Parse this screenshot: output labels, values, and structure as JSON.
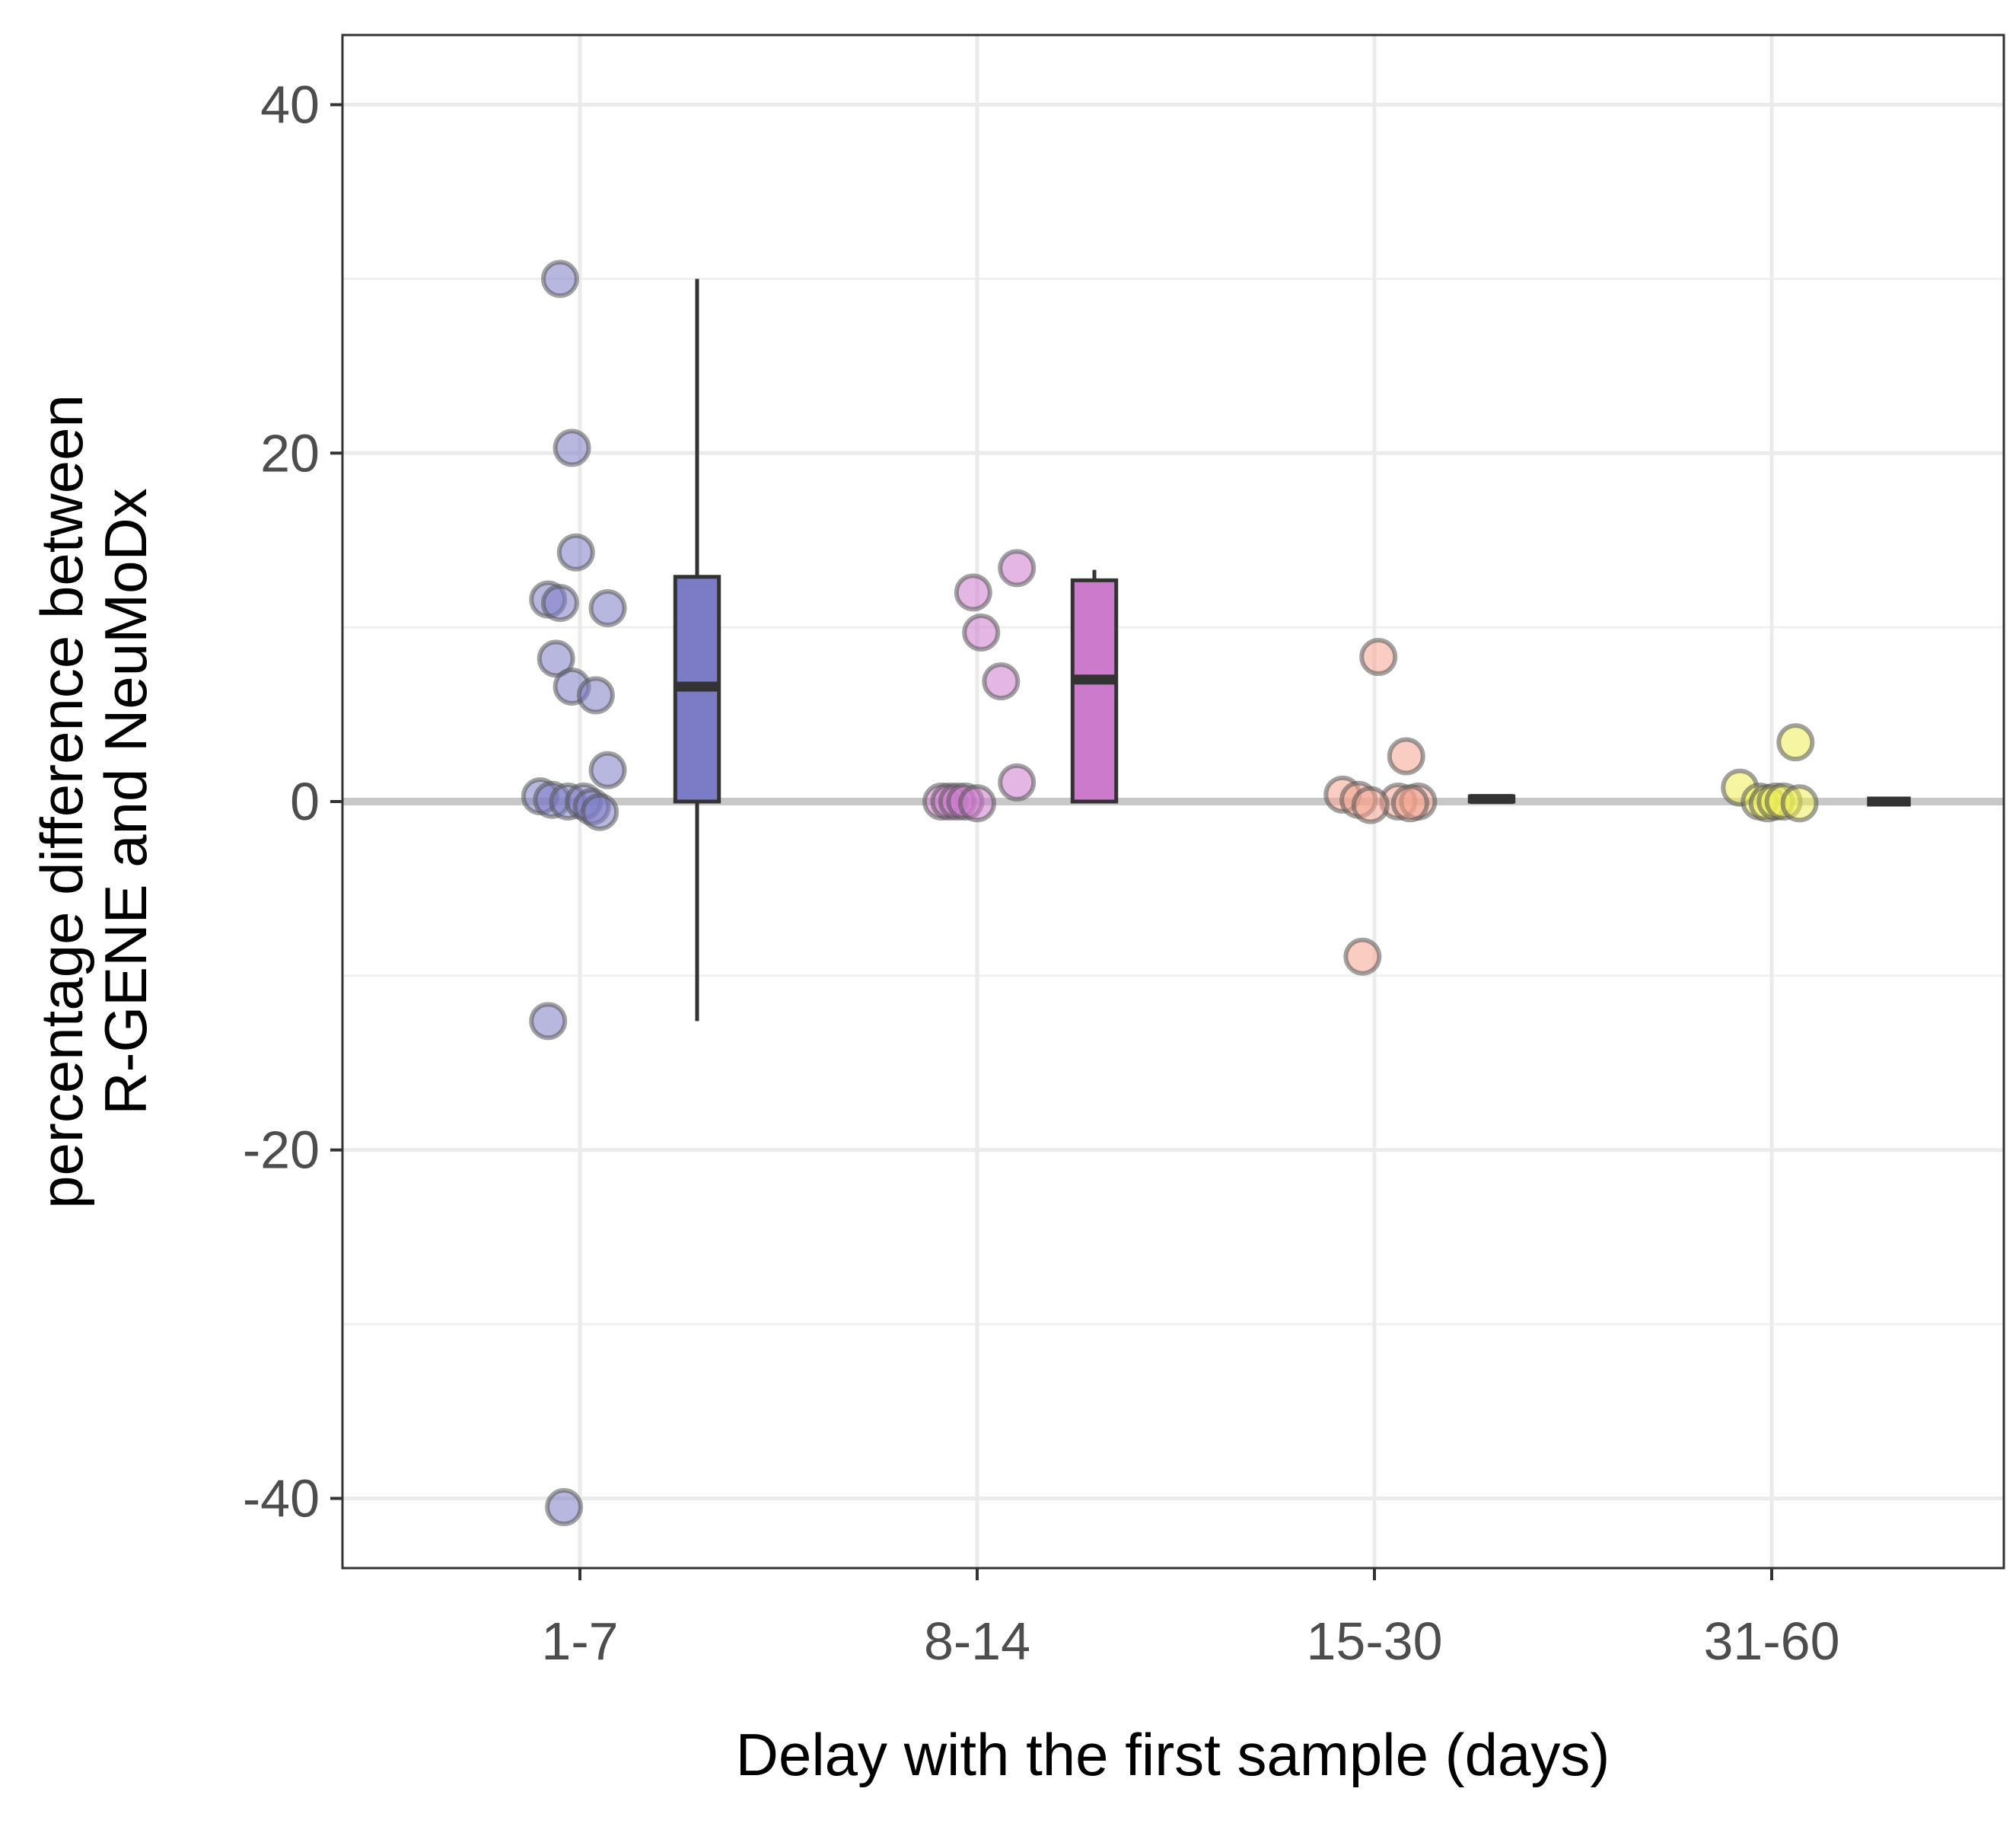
{
  "chart_data": {
    "type": "boxplot-with-jitter",
    "xlabel": "Delay with the first sample (days)",
    "ylabel_lines": [
      "percentage difference between",
      "R-GENE and NeuMoDx"
    ],
    "ylim": [
      -44,
      44
    ],
    "yticks": [
      -40,
      -20,
      0,
      20,
      40
    ],
    "grid": true,
    "reference_line_y": 0,
    "categories": [
      "1-7",
      "8-14",
      "15-30",
      "31-60"
    ],
    "colors": {
      "1-7": "#7b7bc6",
      "8-14": "#cc7acc",
      "15-30": "#f4a490",
      "31-60": "#eeee55"
    },
    "points": {
      "1-7": [
        {
          "offset": -0.05,
          "y": 30
        },
        {
          "offset": -0.02,
          "y": 20.3
        },
        {
          "offset": -0.01,
          "y": 14.3
        },
        {
          "offset": -0.08,
          "y": 11.6
        },
        {
          "offset": -0.05,
          "y": 11.4
        },
        {
          "offset": 0.07,
          "y": 11.1
        },
        {
          "offset": -0.06,
          "y": 8.2
        },
        {
          "offset": -0.02,
          "y": 6.6
        },
        {
          "offset": 0.04,
          "y": 6.1
        },
        {
          "offset": 0.07,
          "y": 1.8
        },
        {
          "offset": -0.1,
          "y": 0.3
        },
        {
          "offset": -0.07,
          "y": 0.1
        },
        {
          "offset": -0.03,
          "y": 0
        },
        {
          "offset": 0.01,
          "y": 0
        },
        {
          "offset": 0.03,
          "y": -0.3
        },
        {
          "offset": 0.05,
          "y": -0.6
        },
        {
          "offset": -0.08,
          "y": -12.6
        },
        {
          "offset": -0.04,
          "y": -40.5
        }
      ],
      "8-14": [
        {
          "offset": 0.1,
          "y": 13.4
        },
        {
          "offset": -0.01,
          "y": 12
        },
        {
          "offset": 0.01,
          "y": 9.7
        },
        {
          "offset": 0.06,
          "y": 6.9
        },
        {
          "offset": 0.1,
          "y": 1.1
        },
        {
          "offset": -0.09,
          "y": 0
        },
        {
          "offset": -0.07,
          "y": 0
        },
        {
          "offset": -0.05,
          "y": 0
        },
        {
          "offset": -0.03,
          "y": 0
        },
        {
          "offset": 0.0,
          "y": -0.1
        }
      ],
      "15-30": [
        {
          "offset": 0.01,
          "y": 8.3
        },
        {
          "offset": 0.08,
          "y": 2.6
        },
        {
          "offset": -0.08,
          "y": 0.4
        },
        {
          "offset": -0.04,
          "y": 0.1
        },
        {
          "offset": 0.06,
          "y": 0
        },
        {
          "offset": 0.11,
          "y": 0
        },
        {
          "offset": 0.09,
          "y": -0.1
        },
        {
          "offset": -0.01,
          "y": -0.2
        },
        {
          "offset": -0.03,
          "y": -8.9
        }
      ],
      "31-60": [
        {
          "offset": 0.06,
          "y": 3.4
        },
        {
          "offset": -0.08,
          "y": 0.8
        },
        {
          "offset": -0.03,
          "y": 0
        },
        {
          "offset": -0.01,
          "y": -0.1
        },
        {
          "offset": 0.01,
          "y": 0
        },
        {
          "offset": 0.03,
          "y": 0
        },
        {
          "offset": 0.07,
          "y": -0.1
        }
      ]
    },
    "boxes": {
      "1-7": {
        "whisker_low": -12.6,
        "q1": 0,
        "median": 6.6,
        "q3": 12.9,
        "whisker_high": 30
      },
      "8-14": {
        "whisker_low": 0,
        "q1": 0,
        "median": 7,
        "q3": 12.7,
        "whisker_high": 13.3
      },
      "15-30": {
        "whisker_low": 0,
        "q1": 0,
        "median": 0.15,
        "q3": 0.3,
        "whisker_high": 0.3
      },
      "31-60": {
        "whisker_low": 0,
        "q1": 0,
        "median": 0,
        "q3": 0,
        "whisker_high": 0
      }
    }
  }
}
